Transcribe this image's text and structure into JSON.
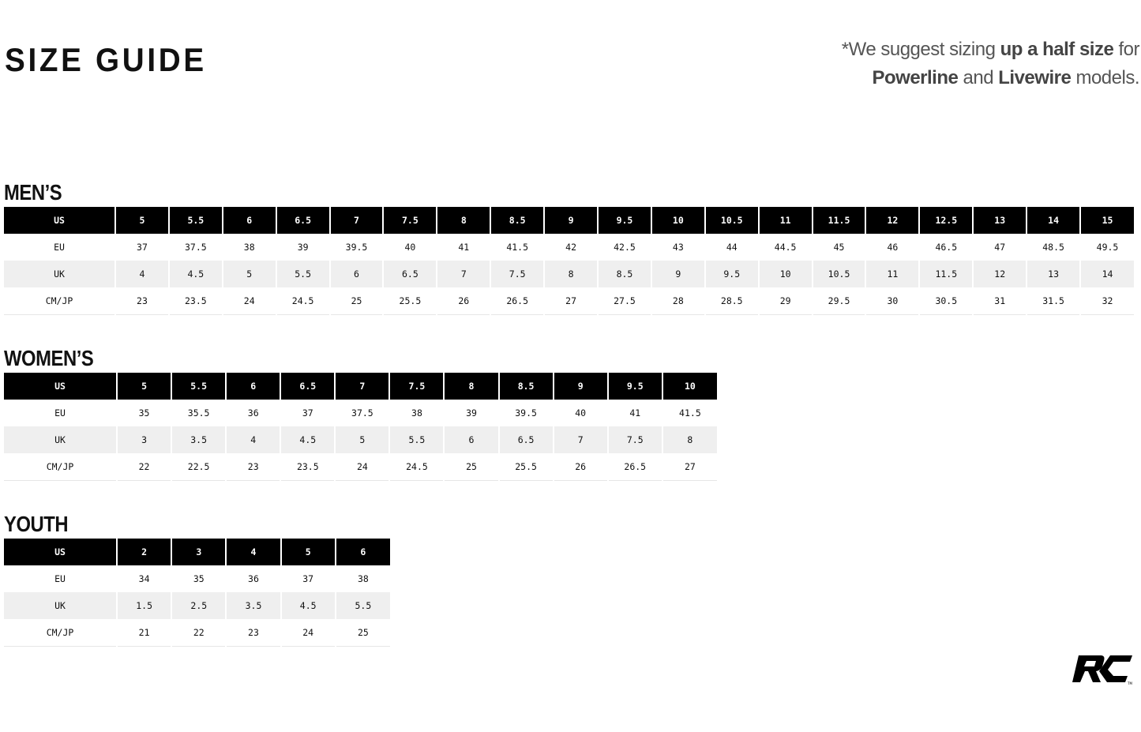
{
  "title": "SIZE GUIDE",
  "note": {
    "p1": "*We suggest sizing ",
    "b1": "up a half size",
    "p2": " for ",
    "b2": "Powerline",
    "p3": " and ",
    "b4": "Livewire",
    "p4": " models."
  },
  "tables": [
    {
      "title": "MEN’S",
      "rows": [
        {
          "label": "US",
          "values": [
            "5",
            "5.5",
            "6",
            "6.5",
            "7",
            "7.5",
            "8",
            "8.5",
            "9",
            "9.5",
            "10",
            "10.5",
            "11",
            "11.5",
            "12",
            "12.5",
            "13",
            "14",
            "15"
          ]
        },
        {
          "label": "EU",
          "values": [
            "37",
            "37.5",
            "38",
            "39",
            "39.5",
            "40",
            "41",
            "41.5",
            "42",
            "42.5",
            "43",
            "44",
            "44.5",
            "45",
            "46",
            "46.5",
            "47",
            "48.5",
            "49.5"
          ]
        },
        {
          "label": "UK",
          "values": [
            "4",
            "4.5",
            "5",
            "5.5",
            "6",
            "6.5",
            "7",
            "7.5",
            "8",
            "8.5",
            "9",
            "9.5",
            "10",
            "10.5",
            "11",
            "11.5",
            "12",
            "13",
            "14"
          ]
        },
        {
          "label": "CM/JP",
          "values": [
            "23",
            "23.5",
            "24",
            "24.5",
            "25",
            "25.5",
            "26",
            "26.5",
            "27",
            "27.5",
            "28",
            "28.5",
            "29",
            "29.5",
            "30",
            "30.5",
            "31",
            "31.5",
            "32"
          ]
        }
      ]
    },
    {
      "title": "WOMEN’S",
      "rows": [
        {
          "label": "US",
          "values": [
            "5",
            "5.5",
            "6",
            "6.5",
            "7",
            "7.5",
            "8",
            "8.5",
            "9",
            "9.5",
            "10"
          ]
        },
        {
          "label": "EU",
          "values": [
            "35",
            "35.5",
            "36",
            "37",
            "37.5",
            "38",
            "39",
            "39.5",
            "40",
            "41",
            "41.5"
          ]
        },
        {
          "label": "UK",
          "values": [
            "3",
            "3.5",
            "4",
            "4.5",
            "5",
            "5.5",
            "6",
            "6.5",
            "7",
            "7.5",
            "8"
          ]
        },
        {
          "label": "CM/JP",
          "values": [
            "22",
            "22.5",
            "23",
            "23.5",
            "24",
            "24.5",
            "25",
            "25.5",
            "26",
            "26.5",
            "27"
          ]
        }
      ]
    },
    {
      "title": "YOUTH",
      "rows": [
        {
          "label": "US",
          "values": [
            "2",
            "3",
            "4",
            "5",
            "6"
          ]
        },
        {
          "label": "EU",
          "values": [
            "34",
            "35",
            "36",
            "37",
            "38"
          ]
        },
        {
          "label": "UK",
          "values": [
            "1.5",
            "2.5",
            "3.5",
            "4.5",
            "5.5"
          ]
        },
        {
          "label": "CM/JP",
          "values": [
            "21",
            "22",
            "23",
            "24",
            "25"
          ]
        }
      ]
    }
  ],
  "logo": {
    "text": "RC",
    "icon": "rc-logo"
  }
}
